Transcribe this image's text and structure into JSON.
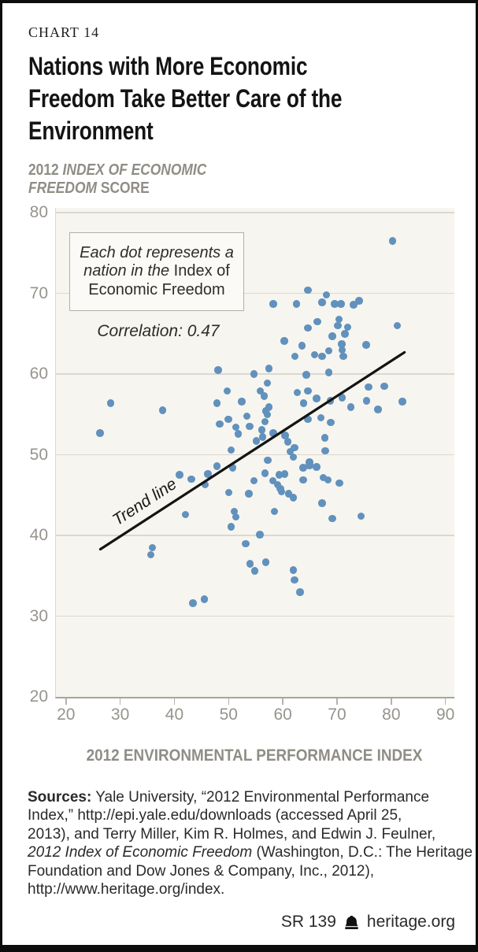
{
  "kicker": "CHART 14",
  "title_lines": [
    "Nations with More Economic",
    "Freedom Take Better Care of the",
    "Environment"
  ],
  "y_axis_title_lines": [
    [
      {
        "t": "2012 ",
        "s": ""
      },
      {
        "t": "INDEX OF ECONOMIC",
        "s": "i"
      }
    ],
    [
      {
        "t": "FREEDOM",
        "s": "i"
      },
      {
        "t": " SCORE",
        "s": ""
      }
    ]
  ],
  "annotation_lines": [
    [
      {
        "t": "Each dot represents a",
        "s": "i"
      }
    ],
    [
      {
        "t": "nation in the ",
        "s": "i"
      },
      {
        "t": "Index of",
        "s": ""
      }
    ],
    [
      {
        "t": "Economic Freedom",
        "s": ""
      }
    ]
  ],
  "correlation_label": "Correlation: 0.47",
  "trend_label": "Trend line",
  "x_axis_title": "2012 ENVIRONMENTAL PERFORMANCE INDEX",
  "sources_lines": [
    [
      {
        "t": "Sources:",
        "s": "b"
      },
      {
        "t": " Yale University, “2012 Environmental Performance",
        "s": ""
      }
    ],
    [
      {
        "t": "Index,” http://epi.yale.edu/downloads (accessed April 25,",
        "s": ""
      }
    ],
    [
      {
        "t": "2013), and Terry Miller, Kim R. Holmes, and Edwin J. Feulner,",
        "s": ""
      }
    ],
    [
      {
        "t": "2012 Index of Economic Freedom",
        "s": "i"
      },
      {
        "t": " (Washington, D.C.: The Heritage",
        "s": ""
      }
    ],
    [
      {
        "t": "Foundation and Dow Jones & Company, Inc., 2012),",
        "s": ""
      }
    ],
    [
      {
        "t": "http://www.heritage.org/index.",
        "s": ""
      }
    ]
  ],
  "footer": {
    "report_id": "SR 139",
    "site": "heritage.org",
    "logo_icon": "liberty-bell"
  },
  "chart_data": {
    "type": "scatter",
    "title": "Nations with More Economic Freedom Take Better Care of the Environment",
    "xlabel": "2012 ENVIRONMENTAL PERFORMANCE INDEX",
    "ylabel": "2012 INDEX OF ECONOMIC FREEDOM SCORE",
    "correlation": 0.47,
    "grid": "horizontal",
    "x_ticks": [
      20,
      30,
      40,
      50,
      60,
      70,
      80,
      90
    ],
    "y_ticks": [
      80,
      70,
      60,
      50,
      40,
      30,
      20
    ],
    "y_gridlines": [
      80,
      70,
      60,
      50,
      40,
      30
    ],
    "x_domain": [
      18,
      91.5
    ],
    "y_domain": [
      20,
      80.6
    ],
    "dot_color": "#6191bd",
    "trend_color": "#141414",
    "trend_line": {
      "x1": 26.2,
      "y1": 38.3,
      "x2": 82.3,
      "y2": 62.7
    },
    "points": [
      [
        47.9,
        60.5
      ],
      [
        54.5,
        60.0
      ],
      [
        49.6,
        57.9
      ],
      [
        47.7,
        56.4
      ],
      [
        52.3,
        56.6
      ],
      [
        28.1,
        56.4
      ],
      [
        37.7,
        55.5
      ],
      [
        49.8,
        54.4
      ],
      [
        48.2,
        53.8
      ],
      [
        53.7,
        53.5
      ],
      [
        53.2,
        54.8
      ],
      [
        51.2,
        53.4
      ],
      [
        26.1,
        52.7
      ],
      [
        51.6,
        52.6
      ],
      [
        55.0,
        51.7
      ],
      [
        80.1,
        76.5
      ],
      [
        64.5,
        70.4
      ],
      [
        67.9,
        69.8
      ],
      [
        58.1,
        68.7
      ],
      [
        62.4,
        68.7
      ],
      [
        67.1,
        68.9
      ],
      [
        69.4,
        68.7
      ],
      [
        70.6,
        68.7
      ],
      [
        72.9,
        68.6
      ],
      [
        73.9,
        69.1
      ],
      [
        70.2,
        66.8
      ],
      [
        66.2,
        66.5
      ],
      [
        70.0,
        66.0
      ],
      [
        64.5,
        65.7
      ],
      [
        71.8,
        65.8
      ],
      [
        81.0,
        66.0
      ],
      [
        69.0,
        64.7
      ],
      [
        71.3,
        65.0
      ],
      [
        60.1,
        64.1
      ],
      [
        63.4,
        63.5
      ],
      [
        70.7,
        63.7
      ],
      [
        75.2,
        63.6
      ],
      [
        70.8,
        63.0
      ],
      [
        68.3,
        62.9
      ],
      [
        62.1,
        62.2
      ],
      [
        65.7,
        62.4
      ],
      [
        67.1,
        62.2
      ],
      [
        71.0,
        62.2
      ],
      [
        57.3,
        60.7
      ],
      [
        64.2,
        59.9
      ],
      [
        68.3,
        60.2
      ],
      [
        57.0,
        58.9
      ],
      [
        55.7,
        57.9
      ],
      [
        56.4,
        57.3
      ],
      [
        62.5,
        57.7
      ],
      [
        64.5,
        57.9
      ],
      [
        75.7,
        58.4
      ],
      [
        78.6,
        58.5
      ],
      [
        66.1,
        57.0
      ],
      [
        68.6,
        56.7
      ],
      [
        70.8,
        57.1
      ],
      [
        63.7,
        56.4
      ],
      [
        75.3,
        56.7
      ],
      [
        81.9,
        56.6
      ],
      [
        72.4,
        55.9
      ],
      [
        56.7,
        55.4
      ],
      [
        57.3,
        55.9
      ],
      [
        77.4,
        55.6
      ],
      [
        57.0,
        55.0
      ],
      [
        56.6,
        54.1
      ],
      [
        64.5,
        54.4
      ],
      [
        66.9,
        54.6
      ],
      [
        68.7,
        54.0
      ],
      [
        56.0,
        53.1
      ],
      [
        60.3,
        52.4
      ],
      [
        58.1,
        52.7
      ],
      [
        56.1,
        52.2
      ],
      [
        67.6,
        52.1
      ],
      [
        60.8,
        51.6
      ],
      [
        62.0,
        50.9
      ],
      [
        61.2,
        50.4
      ],
      [
        67.7,
        50.5
      ],
      [
        50.3,
        50.6
      ],
      [
        40.8,
        47.5
      ],
      [
        43.0,
        47.0
      ],
      [
        46.0,
        47.6
      ],
      [
        47.7,
        48.6
      ],
      [
        50.6,
        48.4
      ],
      [
        45.5,
        46.3
      ],
      [
        49.9,
        45.3
      ],
      [
        53.6,
        45.2
      ],
      [
        54.5,
        46.8
      ],
      [
        41.9,
        42.6
      ],
      [
        50.9,
        43.0
      ],
      [
        51.2,
        42.3
      ],
      [
        50.3,
        41.1
      ],
      [
        53.0,
        39.0
      ],
      [
        55.6,
        40.1
      ],
      [
        35.8,
        38.5
      ],
      [
        35.5,
        37.6
      ],
      [
        53.8,
        36.5
      ],
      [
        54.7,
        35.6
      ],
      [
        45.4,
        32.1
      ],
      [
        43.3,
        31.6
      ],
      [
        61.8,
        49.7
      ],
      [
        57.1,
        49.3
      ],
      [
        64.8,
        49.1
      ],
      [
        64.8,
        48.7
      ],
      [
        66.1,
        48.5
      ],
      [
        56.6,
        47.7
      ],
      [
        63.6,
        48.4
      ],
      [
        59.2,
        47.5
      ],
      [
        60.2,
        47.6
      ],
      [
        58.0,
        46.8
      ],
      [
        58.9,
        46.3
      ],
      [
        63.6,
        46.9
      ],
      [
        67.3,
        47.2
      ],
      [
        68.2,
        46.9
      ],
      [
        59.4,
        45.8
      ],
      [
        59.6,
        45.4
      ],
      [
        60.9,
        45.2
      ],
      [
        61.8,
        44.7
      ],
      [
        70.3,
        46.5
      ],
      [
        67.1,
        44.0
      ],
      [
        58.3,
        43.0
      ],
      [
        69.0,
        42.1
      ],
      [
        74.3,
        42.4
      ],
      [
        56.7,
        36.7
      ],
      [
        61.8,
        35.7
      ],
      [
        62.0,
        34.5
      ],
      [
        63.0,
        33.0
      ]
    ]
  }
}
